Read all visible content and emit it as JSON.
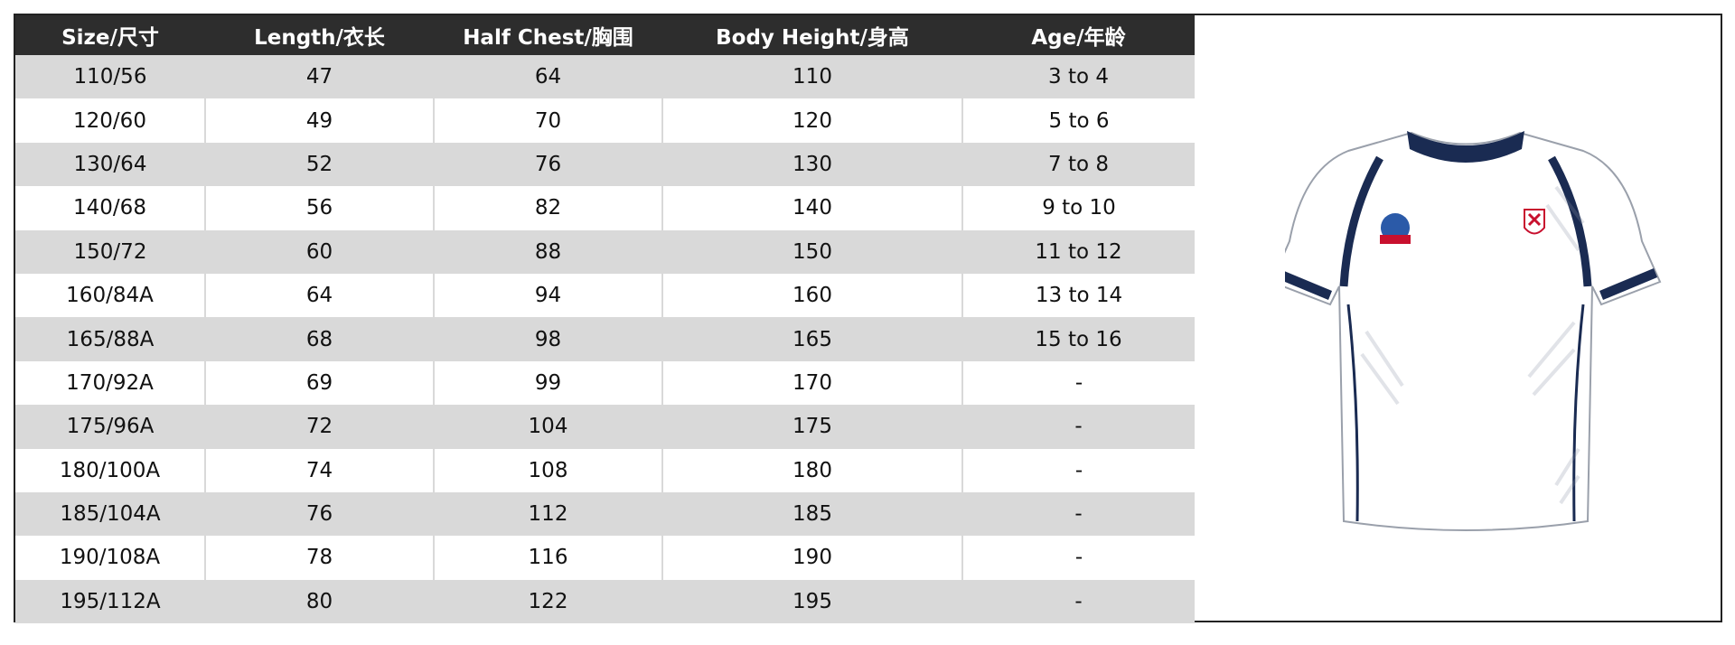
{
  "table": {
    "header": [
      "Size/尺寸",
      "Length/衣长",
      "Half Chest/胸围",
      "Body Height/身高",
      "Age/年龄"
    ],
    "rows": [
      [
        "110/56",
        "47",
        "64",
        "110",
        "3 to 4"
      ],
      [
        "120/60",
        "49",
        "70",
        "120",
        "5 to 6"
      ],
      [
        "130/64",
        "52",
        "76",
        "130",
        "7 to 8"
      ],
      [
        "140/68",
        "56",
        "82",
        "140",
        "9 to 10"
      ],
      [
        "150/72",
        "60",
        "88",
        "150",
        "11 to 12"
      ],
      [
        "160/84A",
        "64",
        "94",
        "160",
        "13 to 14"
      ],
      [
        "165/88A",
        "68",
        "98",
        "165",
        "15 to 16"
      ],
      [
        "170/92A",
        "69",
        "99",
        "170",
        "-"
      ],
      [
        "175/96A",
        "72",
        "104",
        "175",
        "-"
      ],
      [
        "180/100A",
        "74",
        "108",
        "180",
        "-"
      ],
      [
        "185/104A",
        "76",
        "112",
        "185",
        "-"
      ],
      [
        "190/108A",
        "78",
        "116",
        "190",
        "-"
      ],
      [
        "195/112A",
        "80",
        "122",
        "195",
        "-"
      ]
    ]
  }
}
